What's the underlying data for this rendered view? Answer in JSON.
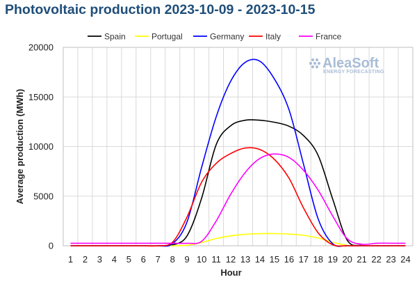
{
  "title": "Photovoltaic production 2023-10-09 - 2023-10-15",
  "watermark": {
    "name": "AleaSoft",
    "tagline": "ENERGY FORECASTING",
    "color": "#a9bdd6"
  },
  "chart_data": {
    "type": "line",
    "xlabel": "Hour",
    "ylabel": "Average production (MWh)",
    "x": [
      1,
      2,
      3,
      4,
      5,
      6,
      7,
      8,
      9,
      10,
      11,
      12,
      13,
      14,
      15,
      16,
      17,
      18,
      19,
      20,
      21,
      22,
      23,
      24
    ],
    "ylim": [
      0,
      20000
    ],
    "yticks": [
      0,
      5000,
      10000,
      15000,
      20000
    ],
    "grid": true,
    "legend_position": "top",
    "series": [
      {
        "name": "Spain",
        "color": "#000000",
        "values": [
          0,
          0,
          0,
          0,
          0,
          0,
          0,
          80,
          1000,
          4800,
          10200,
          12100,
          12650,
          12650,
          12450,
          12050,
          11100,
          9100,
          4700,
          550,
          30,
          0,
          0,
          0
        ]
      },
      {
        "name": "Portugal",
        "color": "#ffff00",
        "values": [
          0,
          0,
          0,
          0,
          0,
          0,
          0,
          0,
          50,
          320,
          730,
          1000,
          1150,
          1220,
          1230,
          1180,
          1050,
          780,
          350,
          40,
          0,
          0,
          0,
          0
        ]
      },
      {
        "name": "Germany",
        "color": "#0000ff",
        "values": [
          0,
          0,
          0,
          0,
          0,
          0,
          0,
          200,
          2400,
          7900,
          13000,
          16600,
          18500,
          18600,
          16800,
          13700,
          8200,
          2700,
          200,
          0,
          0,
          0,
          0,
          0
        ]
      },
      {
        "name": "Italy",
        "color": "#ff0000",
        "values": [
          0,
          0,
          0,
          0,
          0,
          0,
          0,
          350,
          2900,
          6400,
          8300,
          9300,
          9850,
          9700,
          8700,
          6800,
          3800,
          1300,
          100,
          0,
          0,
          0,
          0,
          0
        ]
      },
      {
        "name": "France",
        "color": "#ff00ff",
        "values": [
          250,
          250,
          250,
          250,
          250,
          250,
          250,
          250,
          250,
          450,
          2500,
          5200,
          7400,
          8800,
          9250,
          8900,
          7600,
          5600,
          3000,
          700,
          150,
          250,
          250,
          250
        ]
      }
    ]
  }
}
